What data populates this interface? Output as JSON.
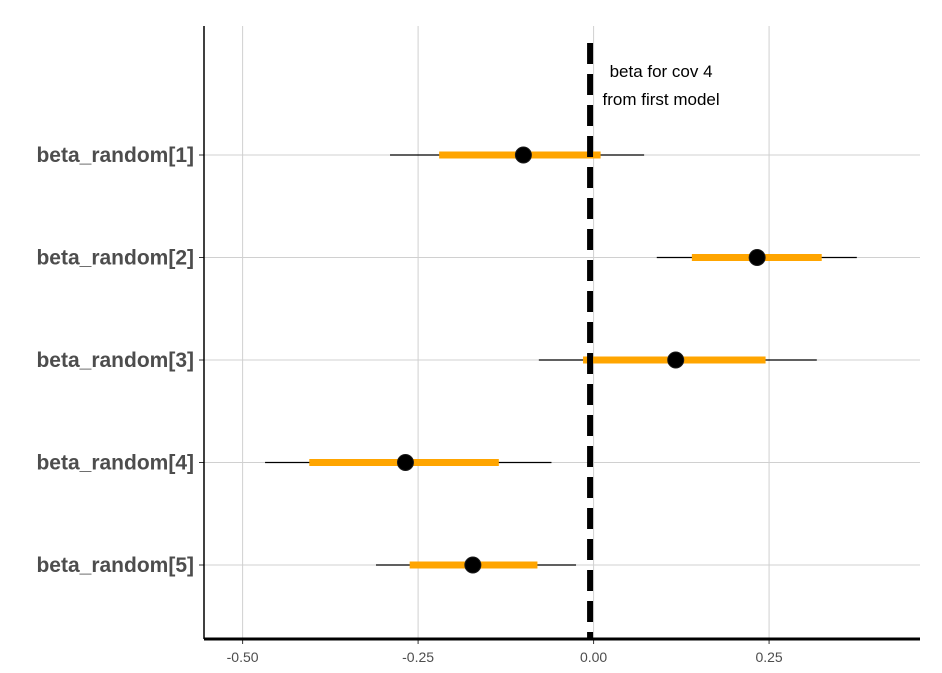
{
  "chart_data": {
    "type": "interval",
    "title": "",
    "xlabel": "",
    "ylabel": "",
    "xlim": [
      -0.555,
      0.465
    ],
    "x_ticks": [
      {
        "value": -0.5,
        "label": "-0.50"
      },
      {
        "value": -0.25,
        "label": "-0.25"
      },
      {
        "value": 0.0,
        "label": "0.00"
      },
      {
        "value": 0.25,
        "label": "0.25"
      }
    ],
    "grid": true,
    "parameters": [
      {
        "label": "beta_random[1]",
        "point": -0.1,
        "inner": [
          -0.22,
          0.01
        ],
        "outer": [
          -0.29,
          0.072
        ]
      },
      {
        "label": "beta_random[2]",
        "point": 0.233,
        "inner": [
          0.14,
          0.325
        ],
        "outer": [
          0.09,
          0.375
        ]
      },
      {
        "label": "beta_random[3]",
        "point": 0.117,
        "inner": [
          -0.015,
          0.245
        ],
        "outer": [
          -0.078,
          0.318
        ]
      },
      {
        "label": "beta_random[4]",
        "point": -0.268,
        "inner": [
          -0.405,
          -0.135
        ],
        "outer": [
          -0.468,
          -0.06
        ]
      },
      {
        "label": "beta_random[5]",
        "point": -0.172,
        "inner": [
          -0.262,
          -0.08
        ],
        "outer": [
          -0.31,
          -0.025
        ]
      }
    ],
    "reference_line": {
      "x": -0.005,
      "style": "dashed",
      "color": "#000000"
    },
    "annotation": {
      "line1": "beta for cov 4",
      "line2": "from first model"
    },
    "colors": {
      "inner_interval": "#FFA500",
      "outer_interval": "#000000",
      "point": "#000000",
      "grid": "#d0d0d0",
      "axis": "#000000"
    }
  }
}
